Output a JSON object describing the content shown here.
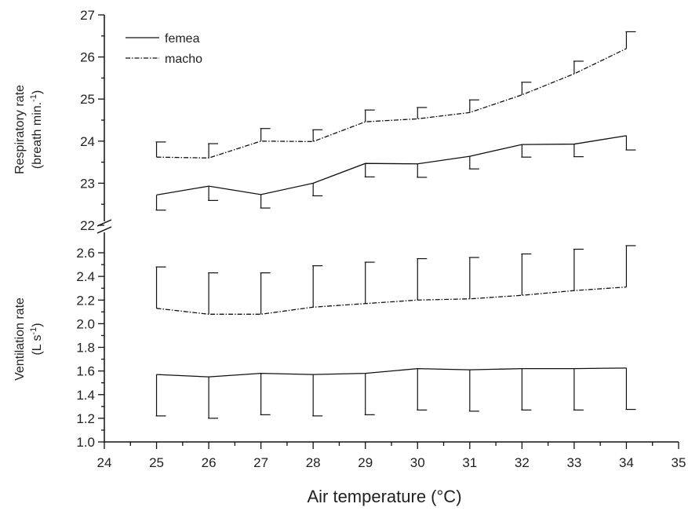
{
  "chart_data": {
    "type": "line",
    "xlabel": "Air temperature (°C)",
    "xlim": [
      24,
      35
    ],
    "xticks": [
      "24",
      "25",
      "26",
      "27",
      "28",
      "29",
      "30",
      "31",
      "32",
      "33",
      "34",
      "35"
    ],
    "x": [
      25,
      26,
      27,
      28,
      29,
      30,
      31,
      32,
      33,
      34
    ],
    "axis_break": true,
    "panels": [
      {
        "ylabel_line1": "Respiratory rate",
        "ylabel_line2": "(breath min.",
        "ylabel_sup": "-1",
        "ylabel_close": ")",
        "ylim": [
          22,
          27
        ],
        "yticks": [
          "22",
          "23",
          "24",
          "25",
          "26",
          "27"
        ],
        "legend": "top-left",
        "series": [
          {
            "name": "femea",
            "style": "solid",
            "values": [
              22.72,
              22.93,
              22.73,
              23.0,
              23.47,
              23.46,
              23.64,
              23.92,
              23.93,
              24.13
            ],
            "errors_low": [
              0.36,
              0.34,
              0.32,
              0.3,
              0.32,
              0.32,
              0.3,
              0.3,
              0.3,
              0.34
            ]
          },
          {
            "name": "macho",
            "style": "dashdot",
            "values": [
              23.62,
              23.6,
              24.0,
              23.99,
              24.46,
              24.53,
              24.68,
              25.1,
              25.6,
              26.2
            ],
            "errors_high": [
              0.36,
              0.34,
              0.3,
              0.28,
              0.28,
              0.27,
              0.3,
              0.3,
              0.3,
              0.4
            ]
          }
        ]
      },
      {
        "ylabel_line1": "Ventilation rate",
        "ylabel_line2": "(L s",
        "ylabel_sup": "-1",
        "ylabel_close": ")",
        "ylim": [
          1.0,
          2.7
        ],
        "yticks": [
          "1.0",
          "1.2",
          "1.4",
          "1.6",
          "1.8",
          "2.0",
          "2.2",
          "2.4",
          "2.6"
        ],
        "series": [
          {
            "name": "femea",
            "style": "solid",
            "values": [
              1.57,
              1.55,
              1.58,
              1.57,
              1.58,
              1.62,
              1.61,
              1.62,
              1.62,
              1.625
            ],
            "errors_low": [
              0.35,
              0.35,
              0.35,
              0.35,
              0.35,
              0.35,
              0.35,
              0.35,
              0.35,
              0.35
            ]
          },
          {
            "name": "macho",
            "style": "dashdot",
            "values": [
              2.13,
              2.08,
              2.08,
              2.14,
              2.17,
              2.2,
              2.21,
              2.24,
              2.28,
              2.31
            ],
            "errors_high": [
              0.35,
              0.35,
              0.35,
              0.35,
              0.35,
              0.35,
              0.35,
              0.35,
              0.35,
              0.35
            ]
          }
        ]
      }
    ]
  }
}
